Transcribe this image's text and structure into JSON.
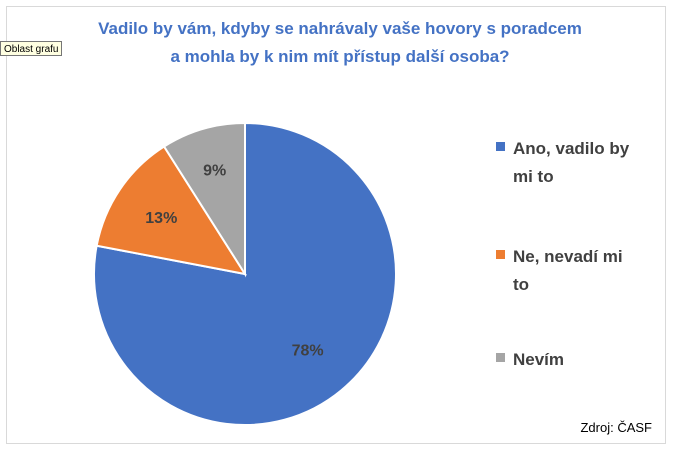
{
  "tooltip": {
    "label": "Oblast grafu"
  },
  "source": "Zdroj: ČASF",
  "chart_data": {
    "type": "pie",
    "title": "Vadilo by vám, kdyby se nahrávaly vaše hovory s poradcem a mohla by k nim mít přístup další osoba?",
    "title_lines": [
      "Vadilo by vám, kdyby se nahrávaly vaše hovory s poradcem",
      "a mohla by k nim mít přístup další osoba?"
    ],
    "categories": [
      "Ano, vadilo by mi to",
      "Ne, nevadí mi to",
      "Nevím"
    ],
    "values": [
      78,
      13,
      9
    ],
    "data_labels": [
      "78%",
      "13%",
      "9%"
    ],
    "colors": [
      "#4472c4",
      "#ed7d31",
      "#a5a5a5"
    ],
    "legend": {
      "position": "right",
      "items": [
        {
          "lines": [
            "Ano, vadilo by",
            "mi to"
          ]
        },
        {
          "lines": [
            "Ne, nevadí mi",
            "to"
          ]
        },
        {
          "lines": [
            "Nevím"
          ]
        }
      ]
    }
  }
}
